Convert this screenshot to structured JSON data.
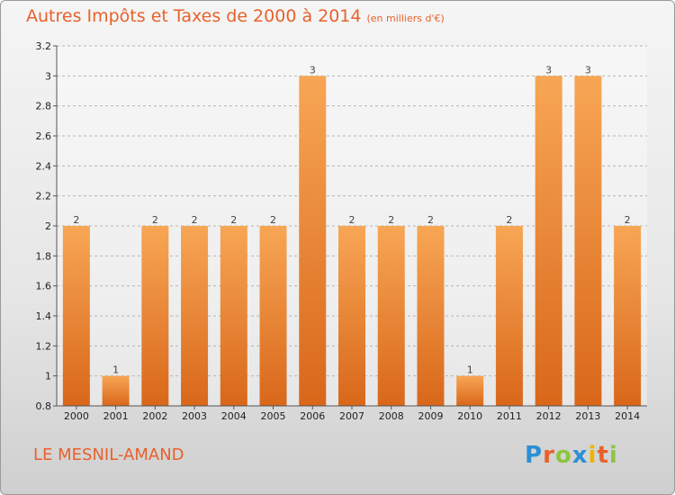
{
  "header": {
    "title": "Autres Impôts et Taxes de 2000 à 2014",
    "unit": "(en milliers d'€)"
  },
  "footer": {
    "location": "LE MESNIL-AMAND",
    "logo_text": "Proxiti",
    "logo_colors": [
      "#2d8fd5",
      "#e8612c",
      "#8cc63f",
      "#2d8fd5",
      "#f0b400",
      "#e8612c",
      "#8cc63f"
    ]
  },
  "colors": {
    "bar_light": "#f7a655",
    "bar_dark": "#d9671a",
    "accent": "#e8612c"
  },
  "chart_data": {
    "type": "bar",
    "categories": [
      "2000",
      "2001",
      "2002",
      "2003",
      "2004",
      "2005",
      "2006",
      "2007",
      "2008",
      "2009",
      "2010",
      "2011",
      "2012",
      "2013",
      "2014"
    ],
    "values": [
      2,
      1,
      2,
      2,
      2,
      2,
      3,
      2,
      2,
      2,
      1,
      2,
      3,
      3,
      2
    ],
    "data_labels": [
      "2",
      "1",
      "2",
      "2",
      "2",
      "2",
      "3",
      "2",
      "2",
      "2",
      "1",
      "2",
      "3",
      "3",
      "2"
    ],
    "ylim": [
      0.8,
      3.2
    ],
    "yticks": [
      0.8,
      1,
      1.2,
      1.4,
      1.6,
      1.8,
      2,
      2.2,
      2.4,
      2.6,
      2.8,
      3,
      3.2
    ],
    "ytick_labels": [
      "0.8",
      "1",
      "1.2",
      "1.4",
      "1.6",
      "1.8",
      "2",
      "2.2",
      "2.4",
      "2.6",
      "2.8",
      "3",
      "3.2"
    ],
    "grid": "horizontal dashed"
  }
}
